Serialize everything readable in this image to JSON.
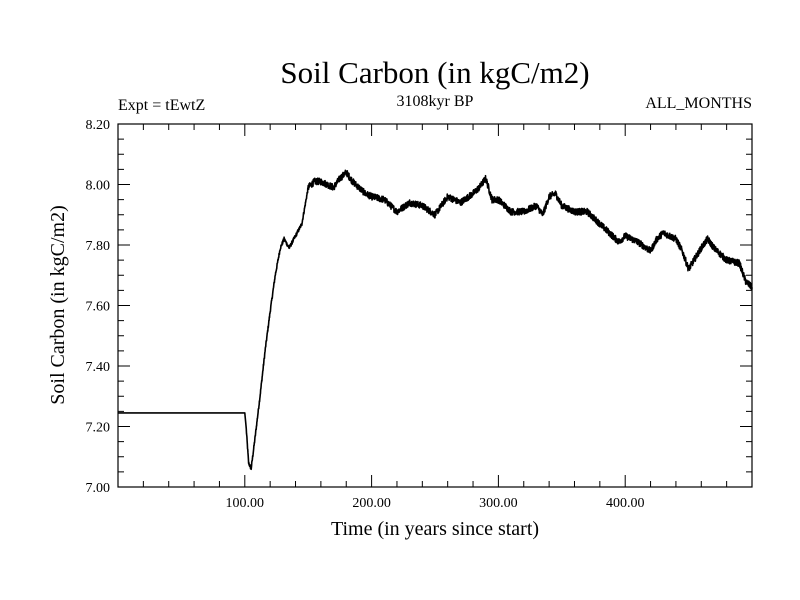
{
  "chart_data": {
    "type": "line",
    "title": "Soil Carbon (in kgC/m2)",
    "subtitle": "3108kyr BP",
    "left_label": "Expt = tEwtZ",
    "right_label": "ALL_MONTHS",
    "xlabel": "Time (in years since start)",
    "ylabel": "Soil Carbon (in kgC/m2)",
    "xlim": [
      0,
      500
    ],
    "ylim": [
      7.0,
      8.2
    ],
    "x_ticks": [
      100,
      200,
      300,
      400
    ],
    "x_tick_labels": [
      "100.00",
      "200.00",
      "300.00",
      "400.00"
    ],
    "y_ticks": [
      7.0,
      7.2,
      7.4,
      7.6,
      7.8,
      8.0,
      8.2
    ],
    "y_tick_labels": [
      "7.00",
      "7.20",
      "7.40",
      "7.60",
      "7.80",
      "8.00",
      "8.20"
    ],
    "grid": false,
    "series": [
      {
        "name": "Soil Carbon",
        "color": "#000000",
        "x": [
          0,
          100,
          101,
          103,
          105,
          108,
          112,
          116,
          120,
          124,
          128,
          131,
          135,
          140,
          145,
          150,
          155,
          160,
          165,
          170,
          175,
          180,
          185,
          190,
          195,
          200,
          210,
          220,
          230,
          240,
          250,
          260,
          270,
          280,
          285,
          290,
          295,
          300,
          310,
          320,
          330,
          335,
          340,
          345,
          350,
          360,
          370,
          380,
          390,
          395,
          400,
          410,
          420,
          425,
          430,
          440,
          445,
          450,
          460,
          465,
          470,
          475,
          480,
          490,
          495,
          500
        ],
        "y": [
          7.245,
          7.245,
          7.2,
          7.08,
          7.06,
          7.16,
          7.3,
          7.45,
          7.58,
          7.7,
          7.79,
          7.82,
          7.79,
          7.83,
          7.87,
          7.99,
          8.01,
          8.01,
          8.0,
          7.99,
          8.02,
          8.04,
          8.01,
          7.99,
          7.97,
          7.96,
          7.95,
          7.91,
          7.94,
          7.93,
          7.9,
          7.96,
          7.94,
          7.97,
          7.99,
          8.02,
          7.95,
          7.95,
          7.91,
          7.91,
          7.93,
          7.9,
          7.96,
          7.97,
          7.93,
          7.91,
          7.91,
          7.87,
          7.83,
          7.81,
          7.83,
          7.81,
          7.78,
          7.82,
          7.84,
          7.82,
          7.78,
          7.72,
          7.79,
          7.82,
          7.79,
          7.77,
          7.75,
          7.74,
          7.68,
          7.66
        ]
      }
    ]
  }
}
